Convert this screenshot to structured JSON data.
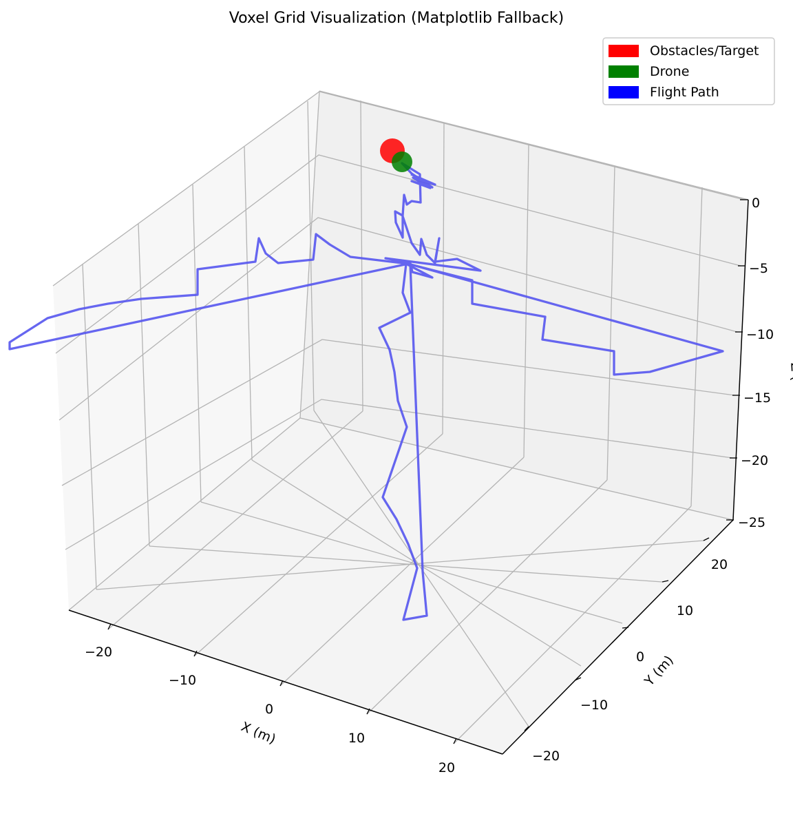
{
  "chart_data": {
    "type": "3d-line-scatter",
    "title": "Voxel Grid Visualization (Matplotlib Fallback)",
    "xlabel": "X (m)",
    "ylabel": "Y (m)",
    "zlabel": "Z (",
    "x_ticks": [
      "−20",
      "−10",
      "0",
      "10",
      "20"
    ],
    "y_ticks": [
      "−20",
      "−10",
      "0",
      "10",
      "20"
    ],
    "z_ticks": [
      "0",
      "−5",
      "−10",
      "−15",
      "−20",
      "−25"
    ],
    "legend": [
      {
        "label": "Obstacles/Target",
        "color": "#ff0000"
      },
      {
        "label": "Drone",
        "color": "#008000"
      },
      {
        "label": "Flight Path",
        "color": "#0000ff"
      }
    ],
    "legend_position": "top-right",
    "grid": true,
    "series": [
      {
        "type": "line",
        "color": "#5555ee",
        "points": [
          [
            597,
            253
          ],
          [
            632,
            268
          ],
          [
            600,
            258
          ],
          [
            625,
            273
          ],
          [
            598,
            263
          ],
          [
            628,
            272
          ],
          [
            598,
            252
          ],
          [
            584,
            237
          ],
          [
            610,
            253
          ],
          [
            611,
            294
          ],
          [
            598,
            292
          ],
          [
            591,
            297
          ],
          [
            587,
            283
          ],
          [
            585,
            313
          ],
          [
            574,
            307
          ],
          [
            575,
            323
          ],
          [
            585,
            345
          ],
          [
            585,
            314
          ],
          [
            598,
            353
          ],
          [
            610,
            370
          ],
          [
            612,
            347
          ],
          [
            620,
            370
          ],
          [
            632,
            382
          ],
          [
            638,
            346
          ],
          [
            632,
            380
          ],
          [
            664,
            376
          ],
          [
            698,
            393
          ],
          [
            560,
            375
          ],
          [
            596,
            382
          ],
          [
            599,
            395
          ],
          [
            628,
            403
          ],
          [
            590,
            383
          ],
          [
            585,
            425
          ],
          [
            596,
            454
          ],
          [
            551,
            476
          ],
          [
            566,
            508
          ],
          [
            573,
            540
          ],
          [
            578,
            582
          ],
          [
            591,
            620
          ],
          [
            556,
            722
          ],
          [
            576,
            754
          ],
          [
            593,
            790
          ],
          [
            606,
            825
          ],
          [
            586,
            900
          ],
          [
            620,
            894
          ],
          [
            614,
            830
          ],
          [
            596,
            384
          ],
          [
            686,
            407
          ],
          [
            686,
            441
          ],
          [
            792,
            460
          ],
          [
            788,
            493
          ],
          [
            892,
            510
          ],
          [
            892,
            544
          ],
          [
            944,
            540
          ],
          [
            1050,
            510
          ],
          [
            593,
            383
          ],
          [
            509,
            373
          ],
          [
            479,
            355
          ],
          [
            459,
            340
          ],
          [
            455,
            377
          ],
          [
            404,
            382
          ],
          [
            386,
            368
          ],
          [
            376,
            346
          ],
          [
            371,
            380
          ],
          [
            287,
            391
          ],
          [
            287,
            428
          ],
          [
            205,
            434
          ],
          [
            157,
            441
          ],
          [
            115,
            449
          ],
          [
            69,
            462
          ],
          [
            14,
            497
          ],
          [
            14,
            507
          ],
          [
            593,
            383
          ]
        ]
      },
      {
        "type": "scatter",
        "name": "Obstacles/Target",
        "color": "#ff0000",
        "x": 570,
        "y": 219
      },
      {
        "type": "scatter",
        "name": "Drone",
        "color": "#008000",
        "x": 584,
        "y": 235
      }
    ]
  }
}
